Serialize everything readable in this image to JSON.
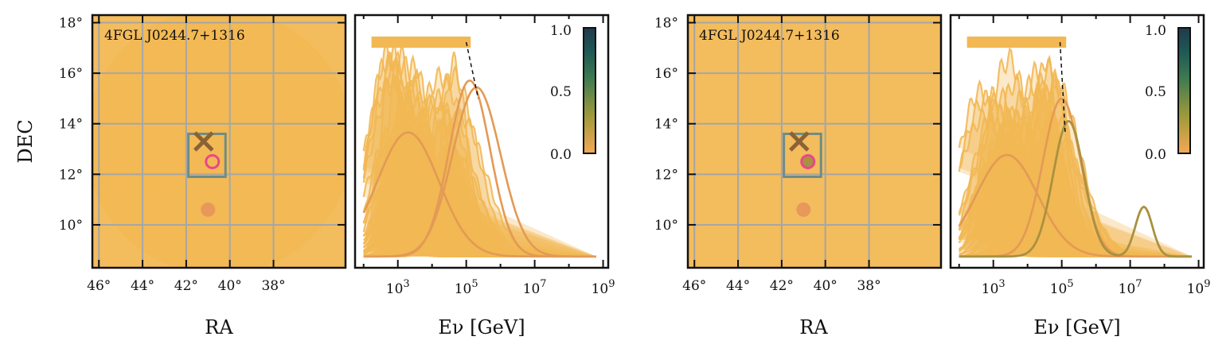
{
  "figure": {
    "colors": {
      "sky_fill": "#F2B854",
      "grid": "#A6A6A6",
      "box": "#6E8C86",
      "cross": "#8A6236",
      "pink_ring": "#E8478A",
      "dot": "#E8985A",
      "spectra": "#F2B854",
      "spectra_highlight": "#E39A55",
      "olive": "#A99140",
      "cmap": [
        "#F5A855",
        "#9D9A3A",
        "#3E7A50",
        "#1F5A55",
        "#1F3A4C"
      ]
    }
  },
  "chart_data": [
    {
      "type": "scatter",
      "name": "sky-map-left",
      "source_label": "4FGL  J0244.7+1316",
      "xlabel": "RA",
      "ylabel": "DEC",
      "xlim": [
        46.3,
        34.7
      ],
      "ylim": [
        8.3,
        18.3
      ],
      "x_ticks": [
        46,
        44,
        42,
        40,
        38
      ],
      "x_tick_labels": [
        "46°",
        "44°",
        "42°",
        "40°",
        "38°"
      ],
      "y_ticks": [
        10,
        12,
        14,
        16,
        18
      ],
      "y_tick_labels": [
        "10°",
        "12°",
        "14°",
        "16°",
        "18°"
      ],
      "source_position": {
        "ra": 41.2,
        "dec": 13.3
      },
      "box": {
        "ra": [
          41.9,
          40.2
        ],
        "dec": [
          11.9,
          13.6
        ]
      },
      "ring_position": {
        "ra": 40.8,
        "dec": 12.5,
        "fill": "#F2B854"
      },
      "dot_position": {
        "ra": 41.0,
        "dec": 10.6
      }
    },
    {
      "type": "line",
      "name": "spectra-left",
      "xlabel": "Eν [GeV]",
      "x_log": true,
      "xlim_log10": [
        1.75,
        9.15
      ],
      "ylim": [
        0,
        1.12
      ],
      "x_ticks_log10": [
        3,
        5,
        7,
        9
      ],
      "x_tick_labels": [
        "10^3",
        "10^5",
        "10^7",
        "10^9"
      ],
      "colorbar": {
        "ticks": [
          "1.0",
          "0.5",
          "0.0"
        ],
        "range": [
          0,
          1
        ]
      },
      "marker_row": {
        "y": 1.0,
        "x_from_log10": 2.3,
        "x_to_log10": 5.1
      },
      "dashed_line": {
        "from": [
          5.0,
          1.0
        ],
        "to": [
          5.35,
          0.75
        ]
      },
      "series_count_background": 40,
      "highlight_curves": [
        {
          "peak_log10": 3.3,
          "peak": 0.55,
          "width": 0.9
        },
        {
          "peak_log10": 5.3,
          "peak": 0.75,
          "width": 0.7
        },
        {
          "peak_log10": 5.1,
          "peak": 0.78,
          "width": 0.6
        }
      ]
    },
    {
      "type": "scatter",
      "name": "sky-map-right",
      "source_label": "4FGL  J0244.7+1316",
      "xlabel": "RA",
      "xlim": [
        46.3,
        34.7
      ],
      "ylim": [
        8.3,
        18.3
      ],
      "x_ticks": [
        46,
        44,
        42,
        40,
        38
      ],
      "x_tick_labels": [
        "46°",
        "44°",
        "42°",
        "40°",
        "38°"
      ],
      "y_ticks": [
        10,
        12,
        14,
        16,
        18
      ],
      "y_tick_labels": [
        "10°",
        "12°",
        "14°",
        "16°",
        "18°"
      ],
      "source_position": {
        "ra": 41.2,
        "dec": 13.3
      },
      "box": {
        "ra": [
          41.9,
          40.2
        ],
        "dec": [
          11.9,
          13.6
        ]
      },
      "ring_position": {
        "ra": 40.8,
        "dec": 12.5,
        "fill": "#A99140"
      },
      "dot_position": {
        "ra": 41.0,
        "dec": 10.6
      }
    },
    {
      "type": "line",
      "name": "spectra-right",
      "xlabel": "Eν [GeV]",
      "x_log": true,
      "xlim_log10": [
        1.75,
        9.15
      ],
      "ylim": [
        0,
        1.12
      ],
      "x_ticks_log10": [
        3,
        5,
        7,
        9
      ],
      "x_tick_labels": [
        "10^3",
        "10^5",
        "10^7",
        "10^9"
      ],
      "colorbar": {
        "ticks": [
          "1.0",
          "0.5",
          "0.0"
        ],
        "range": [
          0,
          1
        ]
      },
      "marker_row": {
        "y": 1.0,
        "x_from_log10": 2.3,
        "x_to_log10": 5.1
      },
      "dashed_line": {
        "from": [
          4.95,
          1.0
        ],
        "to": [
          5.1,
          0.6
        ]
      },
      "series_count_background": 40,
      "highlight_curves": [
        {
          "peak_log10": 3.4,
          "peak": 0.45,
          "width": 0.9
        },
        {
          "peak_log10": 5.0,
          "peak": 0.7,
          "width": 0.55
        }
      ],
      "olive_curve": {
        "peaks": [
          {
            "x_log10": 5.2,
            "y": 0.6,
            "width": 0.45
          },
          {
            "x_log10": 7.4,
            "y": 0.22,
            "width": 0.25
          }
        ]
      }
    }
  ]
}
